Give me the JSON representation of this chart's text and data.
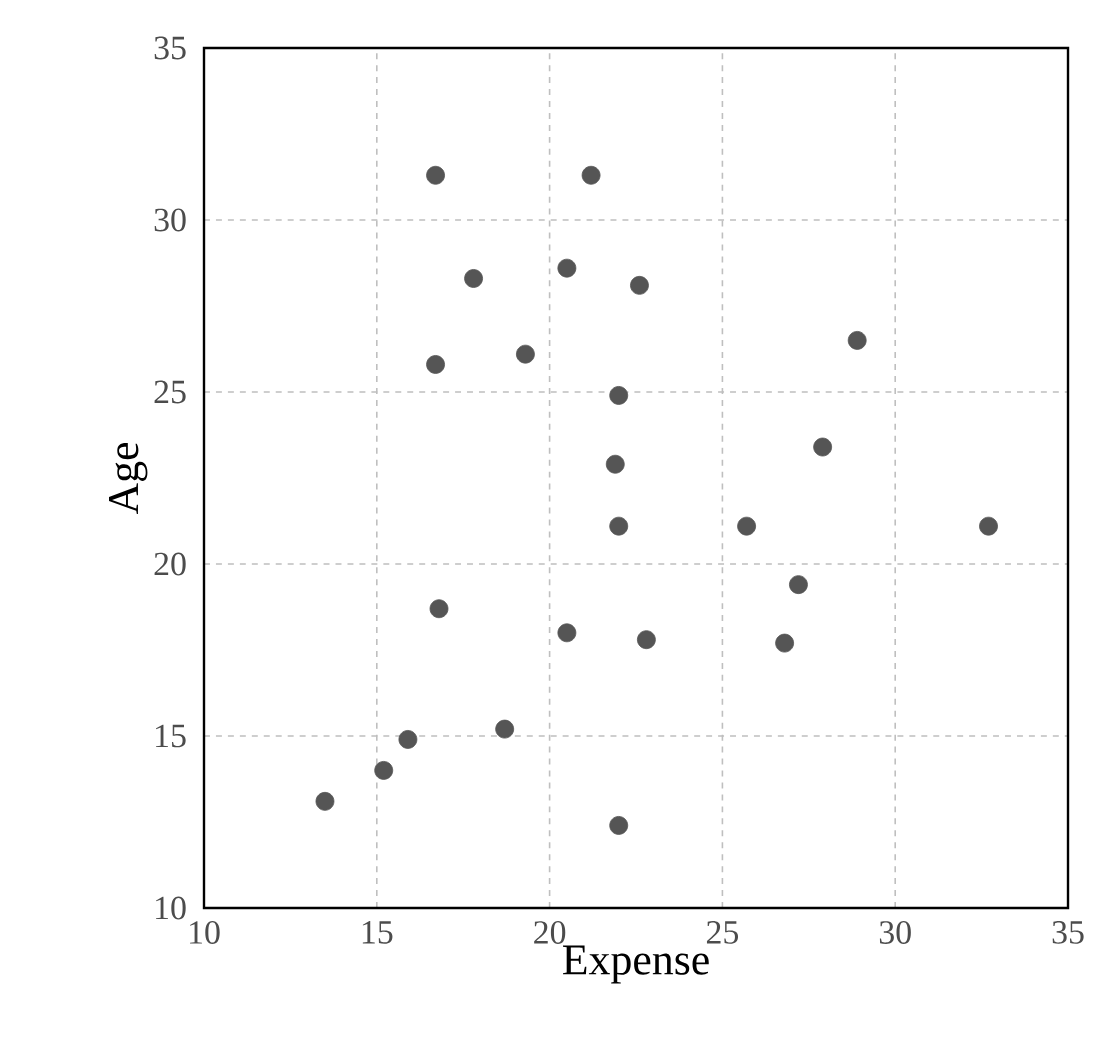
{
  "chart_data": {
    "type": "scatter",
    "xlabel": "Expense",
    "ylabel": "Age",
    "x": [
      13.5,
      15.2,
      15.9,
      16.7,
      16.7,
      16.8,
      17.8,
      18.7,
      19.3,
      21.2,
      20.5,
      20.5,
      22.6,
      22.0,
      21.9,
      22.0,
      22.8,
      22.0,
      25.7,
      26.8,
      27.2,
      27.9,
      28.9,
      32.7
    ],
    "values": [
      13.1,
      14.0,
      14.9,
      31.3,
      25.8,
      18.7,
      28.3,
      15.2,
      26.1,
      31.3,
      28.6,
      18.0,
      28.1,
      24.9,
      22.9,
      21.1,
      17.8,
      12.4,
      21.1,
      17.7,
      19.4,
      23.4,
      26.5,
      21.1
    ],
    "color": "#555555",
    "marker": "circle",
    "grid": true,
    "xlim": [
      10,
      35
    ],
    "ylim": [
      10,
      35
    ],
    "xticks": [
      10,
      15,
      20,
      25,
      30,
      35
    ],
    "yticks": [
      10,
      15,
      20,
      25,
      30,
      35
    ]
  }
}
